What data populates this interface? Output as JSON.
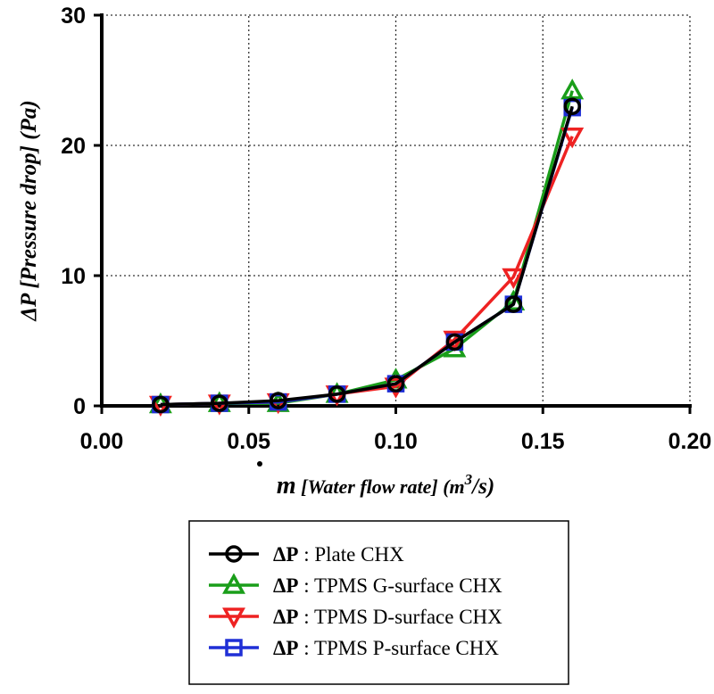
{
  "chart_data": {
    "type": "line",
    "x": [
      0.02,
      0.04,
      0.06,
      0.08,
      0.1,
      0.12,
      0.14,
      0.16
    ],
    "xlim": [
      0.0,
      0.2
    ],
    "ylim": [
      0,
      30
    ],
    "x_ticks": [
      0.0,
      0.05,
      0.1,
      0.15,
      0.2
    ],
    "x_tick_labels": [
      "0.00",
      "0.05",
      "0.10",
      "0.15",
      "0.20"
    ],
    "y_ticks": [
      0,
      10,
      20,
      30
    ],
    "y_tick_labels": [
      "0",
      "10",
      "20",
      "30"
    ],
    "ylabel": "ΔP [Pressure drop] (Pa)",
    "xlabel": {
      "symbol": "m",
      "text": " [Water flow rate] (m",
      "superscript": "3",
      "suffix": "/s)"
    },
    "grid": true,
    "legend_position": "bottom",
    "series": [
      {
        "name": "Plate CHX",
        "legend_symbol": "ΔP",
        "legend_sep": " : ",
        "marker": "circle",
        "color": "#000000",
        "values": [
          0.1,
          0.2,
          0.4,
          0.9,
          1.7,
          4.9,
          7.8,
          23.0
        ]
      },
      {
        "name": "TPMS G-surface CHX",
        "legend_symbol": "ΔP",
        "legend_sep": " : ",
        "marker": "triangle-up",
        "color": "#1a9e1a",
        "values": [
          0.1,
          0.2,
          0.2,
          0.9,
          2.0,
          4.4,
          8.0,
          24.2
        ]
      },
      {
        "name": "TPMS D-surface CHX",
        "legend_symbol": "ΔP",
        "legend_sep": " : ",
        "marker": "triangle-down",
        "color": "#ee2222",
        "values": [
          0.1,
          0.2,
          0.3,
          0.9,
          1.5,
          5.1,
          9.9,
          20.7
        ]
      },
      {
        "name": "TPMS P-surface CHX",
        "legend_symbol": "ΔP",
        "legend_sep": " : ",
        "marker": "square",
        "color": "#1f2fd6",
        "values": [
          0.1,
          0.2,
          0.3,
          0.9,
          1.7,
          4.9,
          7.8,
          22.9
        ]
      }
    ]
  }
}
